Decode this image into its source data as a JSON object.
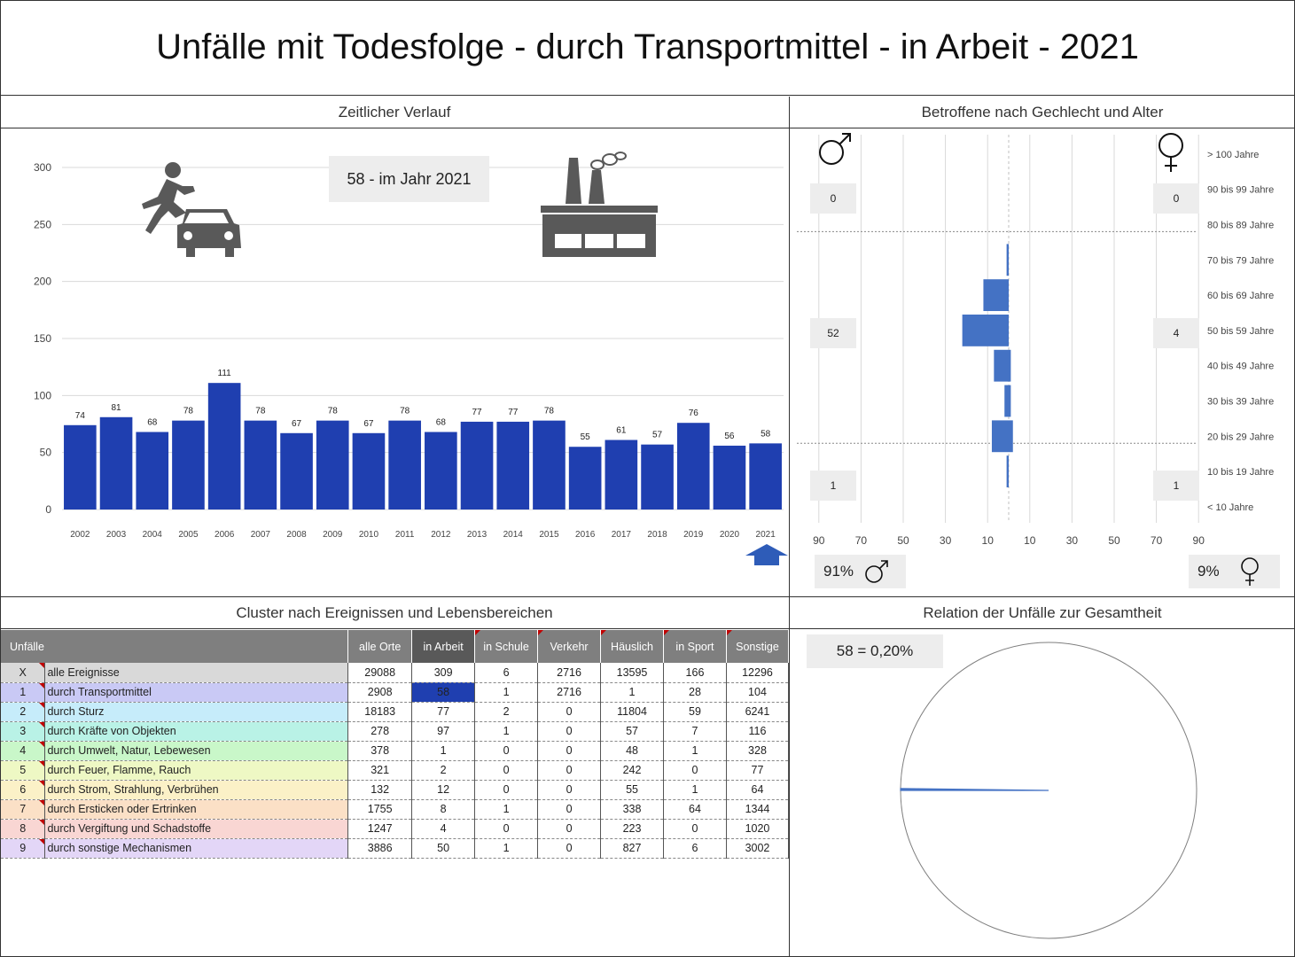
{
  "title": "Unfälle mit Todesfolge - durch Transportmittel - in Arbeit - 2021",
  "panels": {
    "timeline": "Zeitlicher Verlauf",
    "pyramid": "Betroffene nach Gechlecht und Alter",
    "cluster": "Cluster nach Ereignissen und Lebensbereichen",
    "relation": "Relation der Unfälle zur Gesamtheit"
  },
  "callouts": {
    "year": "58 - im Jahr 2021",
    "male_share": "91%",
    "female_share": "9%",
    "relation": "58 =  0,20%"
  },
  "icons": [
    "pedestrian-car-accident-icon",
    "factory-icon",
    "male-symbol-icon",
    "female-symbol-icon",
    "up-arrow-icon"
  ],
  "colors": {
    "bar": "#1f3fb0",
    "pyramid": "#4472c4",
    "header": "#7f7f7f",
    "header_active": "#595959"
  },
  "chart_data": [
    {
      "type": "bar",
      "categories": [
        "2002",
        "2003",
        "2004",
        "2005",
        "2006",
        "2007",
        "2008",
        "2009",
        "2010",
        "2011",
        "2012",
        "2013",
        "2014",
        "2015",
        "2016",
        "2017",
        "2018",
        "2019",
        "2020",
        "2021"
      ],
      "values": [
        74,
        81,
        68,
        78,
        111,
        78,
        67,
        78,
        67,
        78,
        68,
        77,
        77,
        78,
        55,
        61,
        57,
        76,
        56,
        58
      ],
      "ylim": [
        0,
        300
      ],
      "yticks": [
        0,
        50,
        100,
        150,
        200,
        250,
        300
      ],
      "grid": true
    },
    {
      "type": "bar",
      "orientation": "horizontal",
      "categories": [
        "> 100 Jahre",
        "90 bis 99 Jahre",
        "80 bis 89 Jahre",
        "70 bis 79 Jahre",
        "60 bis 69 Jahre",
        "50 bis 59 Jahre",
        "40 bis 49 Jahre",
        "30 bis 39 Jahre",
        "20 bis 29 Jahre",
        "10 bis 19 Jahre",
        "< 10 Jahre"
      ],
      "series": [
        {
          "values": [
            0,
            0,
            0,
            1,
            12,
            22,
            7,
            2,
            8,
            1,
            0
          ]
        },
        {
          "values": [
            0,
            0,
            0,
            0,
            0,
            0,
            1,
            1,
            2,
            0,
            0
          ]
        }
      ],
      "xticks_male": [
        "90",
        "70",
        "50",
        "30",
        "10"
      ],
      "xticks_female": [
        "10",
        "30",
        "50",
        "70",
        "90"
      ],
      "group_totals": {
        "male": [
          "0",
          "52",
          "1"
        ],
        "female": [
          "0",
          "4",
          "1"
        ]
      }
    },
    {
      "type": "pie",
      "values": [
        58,
        29030
      ],
      "percent_label": "0,20%"
    }
  ],
  "cluster_table": {
    "headers": [
      "Unfälle",
      "alle Orte",
      "in Arbeit",
      "in Schule",
      "Verkehr",
      "Häuslich",
      "in Sport",
      "Sonstige"
    ],
    "rows": [
      {
        "id": "X",
        "name": "alle Ereignisse",
        "values": [
          "29088",
          "309",
          "6",
          "2716",
          "13595",
          "166",
          "12296"
        ],
        "color": "#d9d9d9",
        "idcolor": "#d9d9d9"
      },
      {
        "id": "1",
        "name": "durch Transportmittel",
        "values": [
          "2908",
          "58",
          "1",
          "2716",
          "1",
          "28",
          "104"
        ],
        "color": "#c9c9f5",
        "idcolor": "#c9c9f5"
      },
      {
        "id": "2",
        "name": "durch Sturz",
        "values": [
          "18183",
          "77",
          "2",
          "0",
          "11804",
          "59",
          "6241"
        ],
        "color": "#c6ecfa",
        "idcolor": "#c6ecfa"
      },
      {
        "id": "3",
        "name": "durch Kräfte von Objekten",
        "values": [
          "278",
          "97",
          "1",
          "0",
          "57",
          "7",
          "116"
        ],
        "color": "#b9f2e6",
        "idcolor": "#b9f2e6"
      },
      {
        "id": "4",
        "name": "durch Umwelt, Natur, Lebewesen",
        "values": [
          "378",
          "1",
          "0",
          "0",
          "48",
          "1",
          "328"
        ],
        "color": "#c9f7c9",
        "idcolor": "#c9f7c9"
      },
      {
        "id": "5",
        "name": "durch Feuer, Flamme, Rauch",
        "values": [
          "321",
          "2",
          "0",
          "0",
          "242",
          "0",
          "77"
        ],
        "color": "#eef8c4",
        "idcolor": "#eef8c4"
      },
      {
        "id": "6",
        "name": "durch Strom, Strahlung, Verbrühen",
        "values": [
          "132",
          "12",
          "0",
          "0",
          "55",
          "1",
          "64"
        ],
        "color": "#fbf1c7",
        "idcolor": "#fbf1c7"
      },
      {
        "id": "7",
        "name": "durch Ersticken oder Ertrinken",
        "values": [
          "1755",
          "8",
          "1",
          "0",
          "338",
          "64",
          "1344"
        ],
        "color": "#fbe0c6",
        "idcolor": "#fbe0c6"
      },
      {
        "id": "8",
        "name": "durch Vergiftung und Schadstoffe",
        "values": [
          "1247",
          "4",
          "0",
          "0",
          "223",
          "0",
          "1020"
        ],
        "color": "#f9d6d3",
        "idcolor": "#f9d6d3"
      },
      {
        "id": "9",
        "name": "durch sonstige Mechanismen",
        "values": [
          "3886",
          "50",
          "1",
          "0",
          "827",
          "6",
          "3002"
        ],
        "color": "#e3d6f7",
        "idcolor": "#e3d6f7"
      }
    ]
  }
}
